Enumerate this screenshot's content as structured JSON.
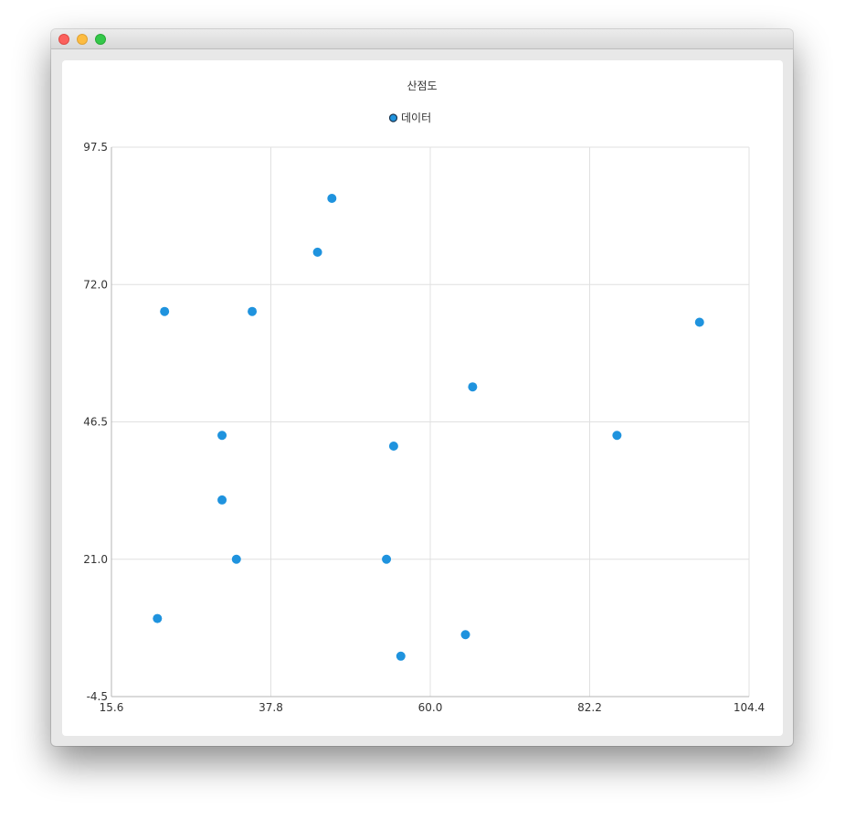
{
  "window": {
    "controls": [
      "close-button",
      "minimize-button",
      "zoom-button"
    ]
  },
  "chart_data": {
    "type": "scatter",
    "title": "산점도",
    "legend": {
      "label": "데이터",
      "placement": "top-center"
    },
    "series": [
      {
        "name": "데이터",
        "color": "#1f93de",
        "points": [
          {
            "x": 46.3,
            "y": 88.0
          },
          {
            "x": 44.3,
            "y": 78.0
          },
          {
            "x": 23.0,
            "y": 67.0
          },
          {
            "x": 35.2,
            "y": 67.0
          },
          {
            "x": 97.5,
            "y": 65.0
          },
          {
            "x": 65.9,
            "y": 53.0
          },
          {
            "x": 31.0,
            "y": 44.0
          },
          {
            "x": 86.0,
            "y": 44.0
          },
          {
            "x": 54.9,
            "y": 42.0
          },
          {
            "x": 31.0,
            "y": 32.0
          },
          {
            "x": 33.0,
            "y": 21.0
          },
          {
            "x": 53.9,
            "y": 21.0
          },
          {
            "x": 22.0,
            "y": 10.0
          },
          {
            "x": 64.9,
            "y": 7.0
          },
          {
            "x": 55.9,
            "y": 3.0
          }
        ]
      }
    ],
    "xlim": [
      15.6,
      104.4
    ],
    "ylim": [
      -4.5,
      97.5
    ],
    "xticks": [
      "15.6",
      "37.8",
      "60.0",
      "82.2",
      "104.4"
    ],
    "yticks": [
      "97.5",
      "72.0",
      "46.5",
      "21.0",
      "-4.5"
    ],
    "grid": true
  }
}
